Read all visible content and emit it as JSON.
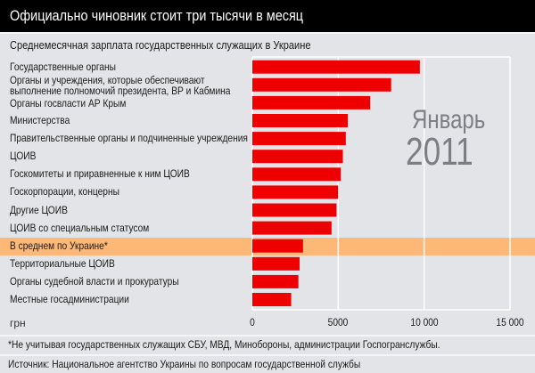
{
  "header": {
    "title": "Официально чиновник стоит три тысячи в месяц"
  },
  "chart_data": {
    "type": "bar",
    "orientation": "horizontal",
    "title": "Среднемесячная зарплата государственных служащих в Украине",
    "annotation": {
      "month": "Январь",
      "year": "2011"
    },
    "xlabel": "грн",
    "xlim": [
      0,
      15000
    ],
    "xticks": [
      "0",
      "5000",
      "10 000",
      "15 000"
    ],
    "xtick_values": [
      0,
      5000,
      10000,
      15000
    ],
    "grid": true,
    "bar_color": "#ee0000",
    "highlight_color": "#fdb877",
    "highlight_index": 10,
    "categories": [
      "Государственные органы",
      "Органы и учреждения, которые обеспечивают\nвыполнение полномочий президента, ВР и Кабмина",
      "Органы госвласти АР Крым",
      "Министерства",
      "Правительственные органы и подчиненные учреждения",
      "ЦОИВ",
      "Госкомитеты и приравненные к ним ЦОИВ",
      "Госкорпорации, концерны",
      "Другие ЦОИВ",
      "ЦОИВ со специальным статусом",
      "В среднем по Украине*",
      "Территориальные ЦОИВ",
      "Органы судебной власти и прокуратуры",
      "Местные госадминистрации"
    ],
    "values": [
      9750,
      8080,
      6860,
      5560,
      5440,
      5270,
      5150,
      4990,
      4900,
      4610,
      2950,
      2750,
      2680,
      2260
    ]
  },
  "footer": {
    "note": "*Не учитывая государственных служащих СБУ, МВД, Минобороны, администрации Госпогранслужбы.",
    "source": "Источник: Национальное агентство Украины по вопросам государственной службы"
  }
}
